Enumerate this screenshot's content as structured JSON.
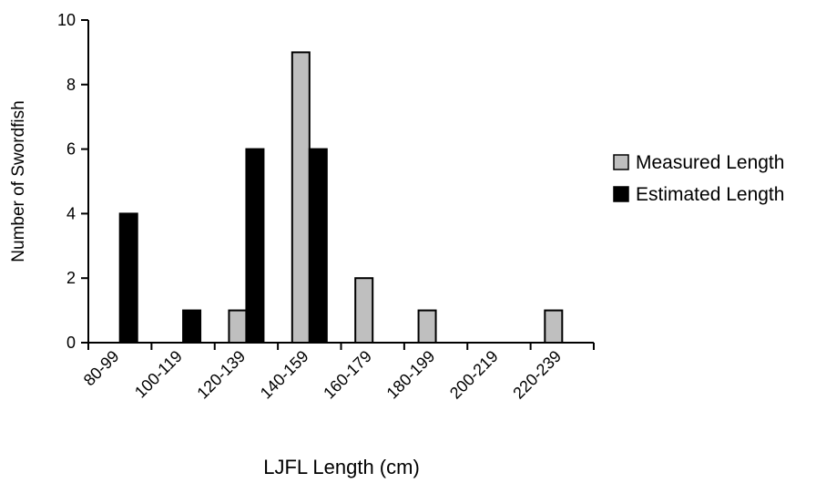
{
  "chart_data": {
    "type": "bar",
    "categories": [
      "80-99",
      "100-119",
      "120-139",
      "140-159",
      "160-179",
      "180-199",
      "200-219",
      "220-239"
    ],
    "series": [
      {
        "name": "Measured Length",
        "color": "#bfbfbf",
        "values": [
          0,
          0,
          1,
          9,
          2,
          1,
          0,
          1
        ]
      },
      {
        "name": "Estimated Length",
        "color": "#000000",
        "values": [
          4,
          1,
          6,
          6,
          0,
          0,
          0,
          0
        ]
      }
    ],
    "xlabel": "LJFL Length (cm)",
    "ylabel": "Number of Swordfish",
    "ylim": [
      0,
      10
    ],
    "yticks": [
      0,
      2,
      4,
      6,
      8,
      10
    ],
    "grid": false,
    "legend": "right"
  }
}
